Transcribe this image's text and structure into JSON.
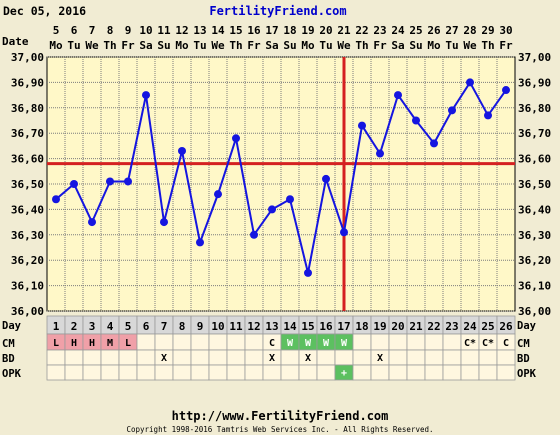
{
  "header": {
    "date": "Dec 05, 2016",
    "site": "FertilityFriend.com"
  },
  "labels": {
    "date_row": "Date",
    "day_row": "Day",
    "cm_row": "CM",
    "bd_row": "BD",
    "opk_row": "OPK"
  },
  "footer": {
    "url": "http://www.FertilityFriend.com",
    "copyright": "Copyright 1998-2016 Tamtris Web Services Inc. - All Rights Reserved."
  },
  "colors": {
    "plot_bg": "#fff8c8",
    "grid": "#7d7d7d",
    "series": "#1515e0",
    "coverline": "#d42020",
    "cm_menstrual": "#f0a0a8",
    "cm_fertile": "#5cc060",
    "opk_positive": "#5cc060"
  },
  "chart_data": {
    "type": "line",
    "title": "",
    "xlabel": "Day",
    "ylabel": "",
    "ylim": [
      36.0,
      37.0
    ],
    "y_ticks": [
      "36,00",
      "36,10",
      "36,20",
      "36,30",
      "36,40",
      "36,50",
      "36,60",
      "36,70",
      "36,80",
      "36,90",
      "37,00"
    ],
    "grid": true,
    "dates": [
      "5",
      "6",
      "7",
      "8",
      "9",
      "10",
      "11",
      "12",
      "13",
      "14",
      "15",
      "16",
      "17",
      "18",
      "19",
      "20",
      "21",
      "22",
      "23",
      "24",
      "25",
      "26",
      "27",
      "28",
      "29",
      "30"
    ],
    "weekdays": [
      "Mo",
      "Tu",
      "We",
      "Th",
      "Fr",
      "Sa",
      "Su",
      "Mo",
      "Tu",
      "We",
      "Th",
      "Fr",
      "Sa",
      "Su",
      "Mo",
      "Tu",
      "We",
      "Th",
      "Fr",
      "Sa",
      "Su",
      "Mo",
      "Tu",
      "We",
      "Th",
      "Fr"
    ],
    "days": [
      1,
      2,
      3,
      4,
      5,
      6,
      7,
      8,
      9,
      10,
      11,
      12,
      13,
      14,
      15,
      16,
      17,
      18,
      19,
      20,
      21,
      22,
      23,
      24,
      25,
      26
    ],
    "temperatures": [
      36.44,
      36.5,
      36.35,
      36.51,
      36.51,
      36.85,
      36.35,
      36.63,
      36.27,
      36.46,
      36.68,
      36.3,
      36.4,
      36.44,
      36.15,
      36.52,
      36.31,
      36.73,
      36.62,
      36.85,
      36.75,
      36.66,
      36.79,
      36.9,
      36.77,
      36.87
    ],
    "coverline": 36.58,
    "ovulation_day": 17,
    "cm": [
      "L",
      "H",
      "H",
      "M",
      "L",
      "",
      "",
      "",
      "",
      "",
      "",
      "",
      "C",
      "W",
      "W",
      "W",
      "W",
      "",
      "",
      "",
      "",
      "",
      "",
      "C*",
      "C*",
      "C"
    ],
    "bd": [
      "",
      "",
      "",
      "",
      "",
      "",
      "X",
      "",
      "",
      "",
      "",
      "",
      "X",
      "",
      "X",
      "",
      "",
      "",
      "X",
      "",
      "",
      "",
      "",
      "",
      "",
      ""
    ],
    "opk": [
      "",
      "",
      "",
      "",
      "",
      "",
      "",
      "",
      "",
      "",
      "",
      "",
      "",
      "",
      "",
      "",
      "+",
      "",
      "",
      "",
      "",
      "",
      "",
      "",
      "",
      ""
    ]
  }
}
